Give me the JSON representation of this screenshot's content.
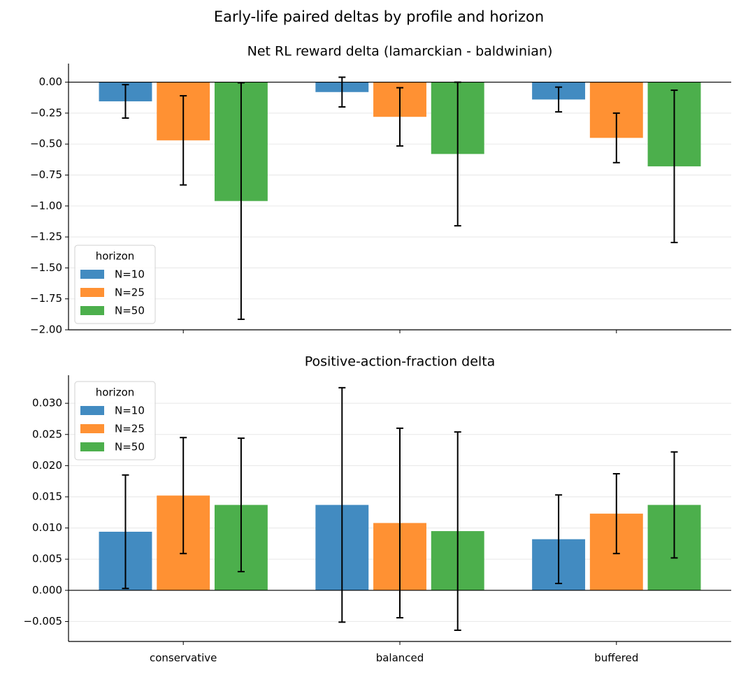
{
  "title": "Early-life paired deltas by profile and horizon",
  "chart_data": [
    {
      "type": "bar",
      "title": "Net RL reward delta (lamarckian - baldwinian)",
      "categories": [
        "conservative",
        "balanced",
        "buffered"
      ],
      "show_category_labels": false,
      "legend_title": "horizon",
      "legend": "lower left",
      "grid": true,
      "ylim": [
        -2.0,
        0.15
      ],
      "yticks": [
        {
          "value": 0,
          "label": "0.00"
        },
        {
          "value": -0.25,
          "label": "−0.25"
        },
        {
          "value": -0.5,
          "label": "−0.50"
        },
        {
          "value": -0.75,
          "label": "−0.75"
        },
        {
          "value": -1.0,
          "label": "−1.00"
        },
        {
          "value": -1.25,
          "label": "−1.25"
        },
        {
          "value": -1.5,
          "label": "−1.50"
        },
        {
          "value": -1.75,
          "label": "−1.75"
        },
        {
          "value": -2.0,
          "label": "−2.00"
        }
      ],
      "series": [
        {
          "name": "N=10",
          "color": "#428bc1",
          "values": [
            -0.155,
            -0.08,
            -0.14
          ],
          "errors": [
            0.135,
            0.12,
            0.1
          ]
        },
        {
          "name": "N=25",
          "color": "#ff9133",
          "values": [
            -0.47,
            -0.28,
            -0.45
          ],
          "errors": [
            0.36,
            0.235,
            0.2
          ]
        },
        {
          "name": "N=50",
          "color": "#4caf4c",
          "values": [
            -0.96,
            -0.58,
            -0.68
          ],
          "errors": [
            0.955,
            0.58,
            0.615
          ]
        }
      ]
    },
    {
      "type": "bar",
      "title": "Positive-action-fraction delta",
      "categories": [
        "conservative",
        "balanced",
        "buffered"
      ],
      "show_category_labels": true,
      "legend_title": "horizon",
      "legend": "upper left",
      "grid": true,
      "ylim": [
        -0.0082,
        0.0345
      ],
      "yticks": [
        {
          "value": -0.005,
          "label": "−0.005"
        },
        {
          "value": 0,
          "label": "0.000"
        },
        {
          "value": 0.005,
          "label": "0.005"
        },
        {
          "value": 0.01,
          "label": "0.010"
        },
        {
          "value": 0.015,
          "label": "0.015"
        },
        {
          "value": 0.02,
          "label": "0.020"
        },
        {
          "value": 0.025,
          "label": "0.025"
        },
        {
          "value": 0.03,
          "label": "0.030"
        }
      ],
      "series": [
        {
          "name": "N=10",
          "color": "#428bc1",
          "values": [
            0.0094,
            0.0137,
            0.0082
          ],
          "errors": [
            0.0091,
            0.0188,
            0.0071
          ]
        },
        {
          "name": "N=25",
          "color": "#ff9133",
          "values": [
            0.0152,
            0.0108,
            0.0123
          ],
          "errors": [
            0.0093,
            0.0152,
            0.0064
          ]
        },
        {
          "name": "N=50",
          "color": "#4caf4c",
          "values": [
            0.0137,
            0.0095,
            0.0137
          ],
          "errors": [
            0.0107,
            0.0159,
            0.0085
          ]
        }
      ]
    }
  ]
}
